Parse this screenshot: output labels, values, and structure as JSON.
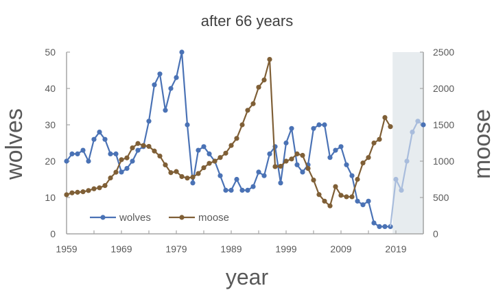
{
  "chart_data": {
    "type": "line",
    "title": "after 66 years",
    "xlabel": "year",
    "ylabel": "wolves",
    "ylabel_right": "moose",
    "xlim": [
      1959,
      2024
    ],
    "ylim": [
      0,
      50
    ],
    "ylim_right": [
      0,
      2500
    ],
    "x_ticks": [
      1959,
      1969,
      1979,
      1989,
      1999,
      2009,
      2019
    ],
    "y_ticks": [
      0,
      10,
      20,
      30,
      40,
      50
    ],
    "y_ticks_right": [
      0,
      500,
      1000,
      1500,
      2000,
      2500
    ],
    "grid": false,
    "legend_position": "inside-lower-left",
    "shaded_region": {
      "x_start": 2018.4,
      "x_end": 2024,
      "color": "#e7ecef"
    },
    "series": [
      {
        "name": "wolves",
        "axis": "left",
        "color": "#4a72b5",
        "x": [
          1959,
          1960,
          1961,
          1962,
          1963,
          1964,
          1965,
          1966,
          1967,
          1968,
          1969,
          1970,
          1971,
          1972,
          1973,
          1974,
          1975,
          1976,
          1977,
          1978,
          1979,
          1980,
          1981,
          1982,
          1983,
          1984,
          1985,
          1986,
          1987,
          1988,
          1989,
          1990,
          1991,
          1992,
          1993,
          1994,
          1995,
          1996,
          1997,
          1998,
          1999,
          2000,
          2001,
          2002,
          2003,
          2004,
          2005,
          2006,
          2007,
          2008,
          2009,
          2010,
          2011,
          2012,
          2013,
          2014,
          2015,
          2016,
          2017,
          2018
        ],
        "values": [
          20,
          22,
          22,
          23,
          20,
          26,
          28,
          26,
          22,
          22,
          17,
          18,
          20,
          23,
          24,
          31,
          41,
          44,
          34,
          40,
          43,
          50,
          30,
          14,
          23,
          24,
          22,
          20,
          16,
          12,
          12,
          15,
          12,
          12,
          13,
          17,
          16,
          22,
          24,
          14,
          25,
          29,
          19,
          17,
          19,
          29,
          30,
          30,
          21,
          23,
          24,
          19,
          16,
          9,
          8,
          9,
          3,
          2,
          2,
          2
        ]
      },
      {
        "name": "moose",
        "axis": "right",
        "color": "#7f5f36",
        "x": [
          1959,
          1960,
          1961,
          1962,
          1963,
          1964,
          1965,
          1966,
          1967,
          1968,
          1969,
          1970,
          1971,
          1972,
          1973,
          1974,
          1975,
          1976,
          1977,
          1978,
          1979,
          1980,
          1981,
          1982,
          1983,
          1984,
          1985,
          1986,
          1987,
          1988,
          1989,
          1990,
          1991,
          1992,
          1993,
          1994,
          1995,
          1996,
          1997,
          1998,
          1999,
          2000,
          2001,
          2002,
          2003,
          2004,
          2005,
          2006,
          2007,
          2008,
          2009,
          2010,
          2011,
          2012,
          2013,
          2014,
          2015,
          2016,
          2017,
          2018
        ],
        "values": [
          538,
          564,
          572,
          579,
          596,
          620,
          634,
          664,
          769,
          848,
          1020,
          1045,
          1183,
          1243,
          1215,
          1203,
          1139,
          1070,
          949,
          842,
          857,
          788,
          767,
          780,
          830,
          910,
          970,
          1000,
          1050,
          1110,
          1216,
          1313,
          1500,
          1700,
          1790,
          2017,
          2117,
          2400,
          925,
          930,
          1000,
          1030,
          1100,
          1080,
          900,
          740,
          540,
          450,
          385,
          650,
          530,
          510,
          510,
          750,
          975,
          1050,
          1250,
          1300,
          1600,
          1475
        ]
      },
      {
        "name": "wolves (after 2018)",
        "axis": "left",
        "color": "#a8bcdc",
        "legend": false,
        "x": [
          2018,
          2019,
          2020,
          2021,
          2022,
          2023,
          2024
        ],
        "values": [
          2,
          15,
          12,
          20,
          28,
          31,
          30
        ]
      }
    ]
  },
  "legend": {
    "items": [
      {
        "label": "wolves",
        "color": "#4a72b5"
      },
      {
        "label": "moose",
        "color": "#7f5f36"
      }
    ]
  },
  "colors": {
    "axis": "#a6a6a6",
    "tick_text": "#595959",
    "shade": "#e7ecef"
  }
}
